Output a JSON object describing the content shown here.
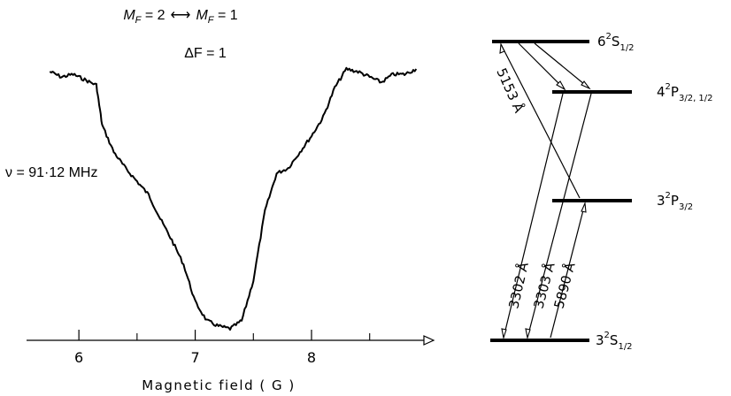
{
  "chart_data": {
    "type": "line",
    "title_line1": {
      "left_m": "M",
      "left_sub": "F",
      "left_eq": " = 2",
      "arrow": "⟷",
      "right_m": "M",
      "right_sub": "F",
      "right_eq": " = 1"
    },
    "title_line2": "ΔF = 1",
    "annotation": "ν = 91·12 MHz",
    "xlabel": "Magnetic field ( G )",
    "ylabel": "",
    "x_ticks": [
      6,
      7,
      8
    ],
    "x_tick_labels": [
      "6",
      "7",
      "8"
    ],
    "x_minor_ticks": [
      6.5,
      7.5,
      8.5
    ],
    "xlim": [
      5.55,
      9.05
    ],
    "ylim": [
      0,
      1
    ],
    "grid": false,
    "series": [
      {
        "x": [
          5.75,
          5.85,
          5.95,
          6.05,
          6.15,
          6.2,
          6.3,
          6.4,
          6.5,
          6.6,
          6.7,
          6.8,
          6.9,
          7.0,
          7.1,
          7.2,
          7.3,
          7.4,
          7.5,
          7.6,
          7.7,
          7.8,
          7.9,
          8.0,
          8.1,
          8.2,
          8.3,
          8.4,
          8.5,
          8.6,
          8.7,
          8.8,
          8.9
        ],
        "y": [
          0.98,
          0.96,
          0.97,
          0.95,
          0.93,
          0.78,
          0.68,
          0.62,
          0.57,
          0.52,
          0.43,
          0.35,
          0.26,
          0.12,
          0.05,
          0.03,
          0.02,
          0.05,
          0.2,
          0.46,
          0.6,
          0.62,
          0.68,
          0.74,
          0.81,
          0.92,
          0.99,
          0.98,
          0.96,
          0.94,
          0.97,
          0.97,
          0.99
        ]
      }
    ]
  },
  "level_diagram": {
    "levels": [
      {
        "id": "6s",
        "prefix": "6",
        "sup": "2",
        "letter": "S",
        "sub": "1/2"
      },
      {
        "id": "4p",
        "prefix": "4",
        "sup": "2",
        "letter": "P",
        "sub": "3/2, 1/2"
      },
      {
        "id": "3p",
        "prefix": "3",
        "sup": "2",
        "letter": "P",
        "sub": "3/2"
      },
      {
        "id": "3s",
        "prefix": "3",
        "sup": "2",
        "letter": "S",
        "sub": "1/2"
      }
    ],
    "transitions": [
      {
        "id": "t5153",
        "label": "5153 Å",
        "from": "6s",
        "to": "3p"
      },
      {
        "id": "t3302",
        "label": "3302 Å",
        "from": "4p",
        "to": "3s"
      },
      {
        "id": "t3303",
        "label": "3303 Å",
        "from": "4p",
        "to": "3s"
      },
      {
        "id": "t5890",
        "label": "5890 Å",
        "from": "3s",
        "to": "3p"
      }
    ]
  }
}
